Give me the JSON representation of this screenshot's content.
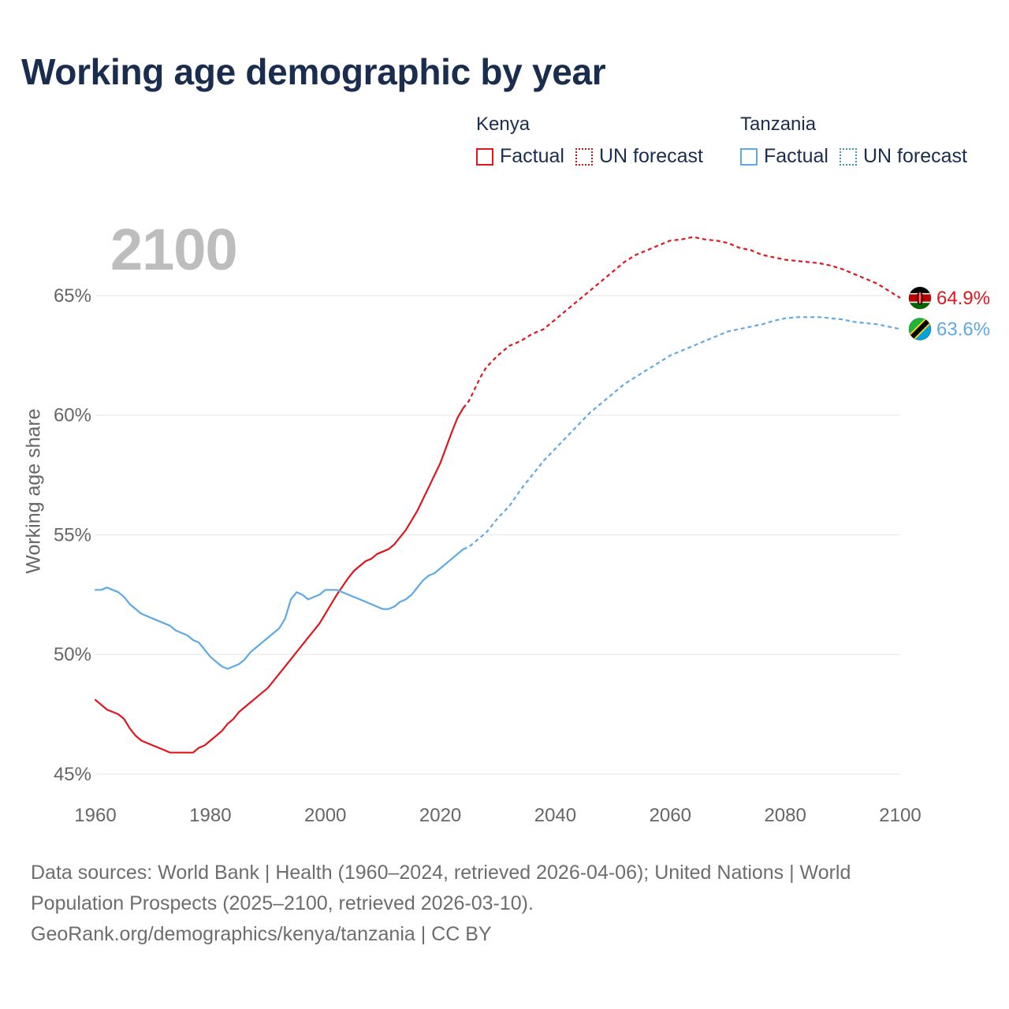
{
  "title": "Working age demographic by year",
  "year_display": "2100",
  "legend": {
    "kenya": {
      "name": "Kenya",
      "factual": "Factual",
      "forecast": "UN forecast"
    },
    "tanzania": {
      "name": "Tanzania",
      "factual": "Factual",
      "forecast": "UN forecast"
    }
  },
  "footer": {
    "line1": "Data sources: World Bank | Health (1960–2024, retrieved 2026-04-06); United Nations | World",
    "line2": "Population Prospects (2025–2100, retrieved 2026-03-10).",
    "line3": "GeoRank.org/demographics/kenya/tanzania | CC BY"
  },
  "colors": {
    "kenya": "#e0161e",
    "tanzania": "#5ea9e6",
    "grid": "#e6e6e6",
    "axis_text": "#666666",
    "title": "#1b2d4f"
  },
  "chart_data": {
    "type": "line",
    "title": "Working age demographic by year",
    "xlabel": "",
    "ylabel": "Working age share",
    "xlim": [
      1960,
      2100
    ],
    "ylim": [
      45,
      67.8
    ],
    "x_ticks": [
      1960,
      1980,
      2000,
      2020,
      2040,
      2060,
      2080,
      2100
    ],
    "y_ticks": [
      45,
      50,
      55,
      60,
      65
    ],
    "y_tick_labels": [
      "45%",
      "50%",
      "55%",
      "60%",
      "65%"
    ],
    "forecast_start": 2024,
    "grid": true,
    "series": [
      {
        "name": "Kenya",
        "color": "#e0161e",
        "end_label": "64.9%",
        "flag": "kenya-flag",
        "points": [
          [
            1960,
            48.1
          ],
          [
            1962,
            47.7
          ],
          [
            1964,
            47.5
          ],
          [
            1965,
            47.3
          ],
          [
            1966,
            46.9
          ],
          [
            1967,
            46.6
          ],
          [
            1968,
            46.4
          ],
          [
            1970,
            46.2
          ],
          [
            1972,
            46.0
          ],
          [
            1973,
            45.9
          ],
          [
            1977,
            45.9
          ],
          [
            1978,
            46.1
          ],
          [
            1979,
            46.2
          ],
          [
            1980,
            46.4
          ],
          [
            1982,
            46.8
          ],
          [
            1983,
            47.1
          ],
          [
            1984,
            47.3
          ],
          [
            1985,
            47.6
          ],
          [
            1987,
            48.0
          ],
          [
            1990,
            48.6
          ],
          [
            1993,
            49.5
          ],
          [
            1996,
            50.4
          ],
          [
            1999,
            51.3
          ],
          [
            2002,
            52.5
          ],
          [
            2004,
            53.2
          ],
          [
            2005,
            53.5
          ],
          [
            2006,
            53.7
          ],
          [
            2007,
            53.9
          ],
          [
            2008,
            54.0
          ],
          [
            2009,
            54.2
          ],
          [
            2011,
            54.4
          ],
          [
            2012,
            54.6
          ],
          [
            2014,
            55.2
          ],
          [
            2016,
            56.0
          ],
          [
            2018,
            57.0
          ],
          [
            2020,
            58.0
          ],
          [
            2022,
            59.3
          ],
          [
            2023,
            59.9
          ],
          [
            2024,
            60.3
          ],
          [
            2025,
            60.6
          ],
          [
            2026,
            61.1
          ],
          [
            2027,
            61.6
          ],
          [
            2028,
            62.0
          ],
          [
            2030,
            62.5
          ],
          [
            2032,
            62.9
          ],
          [
            2034,
            63.1
          ],
          [
            2036,
            63.4
          ],
          [
            2038,
            63.6
          ],
          [
            2040,
            64.0
          ],
          [
            2042,
            64.4
          ],
          [
            2044,
            64.8
          ],
          [
            2046,
            65.2
          ],
          [
            2048,
            65.6
          ],
          [
            2050,
            66.0
          ],
          [
            2052,
            66.4
          ],
          [
            2054,
            66.7
          ],
          [
            2056,
            66.9
          ],
          [
            2058,
            67.1
          ],
          [
            2060,
            67.3
          ],
          [
            2062,
            67.35
          ],
          [
            2064,
            67.45
          ],
          [
            2066,
            67.35
          ],
          [
            2068,
            67.3
          ],
          [
            2070,
            67.2
          ],
          [
            2072,
            67.0
          ],
          [
            2074,
            66.9
          ],
          [
            2076,
            66.7
          ],
          [
            2078,
            66.6
          ],
          [
            2080,
            66.5
          ],
          [
            2082,
            66.45
          ],
          [
            2084,
            66.4
          ],
          [
            2086,
            66.35
          ],
          [
            2088,
            66.25
          ],
          [
            2090,
            66.1
          ],
          [
            2092,
            65.9
          ],
          [
            2094,
            65.7
          ],
          [
            2096,
            65.5
          ],
          [
            2098,
            65.2
          ],
          [
            2100,
            64.9
          ]
        ]
      },
      {
        "name": "Tanzania",
        "color": "#5ea9e6",
        "end_label": "63.6%",
        "flag": "tanzania-flag",
        "points": [
          [
            1960,
            52.7
          ],
          [
            1961,
            52.7
          ],
          [
            1962,
            52.8
          ],
          [
            1964,
            52.6
          ],
          [
            1965,
            52.4
          ],
          [
            1966,
            52.1
          ],
          [
            1967,
            51.9
          ],
          [
            1968,
            51.7
          ],
          [
            1970,
            51.5
          ],
          [
            1972,
            51.3
          ],
          [
            1973,
            51.2
          ],
          [
            1974,
            51.0
          ],
          [
            1976,
            50.8
          ],
          [
            1977,
            50.6
          ],
          [
            1978,
            50.5
          ],
          [
            1979,
            50.2
          ],
          [
            1980,
            49.9
          ],
          [
            1981,
            49.7
          ],
          [
            1982,
            49.5
          ],
          [
            1983,
            49.4
          ],
          [
            1985,
            49.6
          ],
          [
            1986,
            49.8
          ],
          [
            1987,
            50.1
          ],
          [
            1988,
            50.3
          ],
          [
            1990,
            50.7
          ],
          [
            1992,
            51.1
          ],
          [
            1993,
            51.5
          ],
          [
            1994,
            52.3
          ],
          [
            1995,
            52.6
          ],
          [
            1996,
            52.5
          ],
          [
            1997,
            52.3
          ],
          [
            1998,
            52.4
          ],
          [
            1999,
            52.5
          ],
          [
            2000,
            52.7
          ],
          [
            2002,
            52.7
          ],
          [
            2004,
            52.5
          ],
          [
            2006,
            52.3
          ],
          [
            2008,
            52.1
          ],
          [
            2010,
            51.9
          ],
          [
            2011,
            51.9
          ],
          [
            2012,
            52.0
          ],
          [
            2013,
            52.2
          ],
          [
            2014,
            52.3
          ],
          [
            2015,
            52.5
          ],
          [
            2016,
            52.8
          ],
          [
            2017,
            53.1
          ],
          [
            2018,
            53.3
          ],
          [
            2019,
            53.4
          ],
          [
            2020,
            53.6
          ],
          [
            2022,
            54.0
          ],
          [
            2024,
            54.4
          ],
          [
            2025,
            54.5
          ],
          [
            2026,
            54.7
          ],
          [
            2028,
            55.1
          ],
          [
            2030,
            55.7
          ],
          [
            2032,
            56.2
          ],
          [
            2034,
            56.9
          ],
          [
            2036,
            57.5
          ],
          [
            2038,
            58.1
          ],
          [
            2040,
            58.6
          ],
          [
            2042,
            59.1
          ],
          [
            2044,
            59.6
          ],
          [
            2046,
            60.1
          ],
          [
            2048,
            60.5
          ],
          [
            2050,
            60.9
          ],
          [
            2052,
            61.3
          ],
          [
            2054,
            61.6
          ],
          [
            2056,
            61.9
          ],
          [
            2058,
            62.2
          ],
          [
            2060,
            62.5
          ],
          [
            2062,
            62.7
          ],
          [
            2064,
            62.9
          ],
          [
            2066,
            63.1
          ],
          [
            2068,
            63.3
          ],
          [
            2070,
            63.5
          ],
          [
            2072,
            63.6
          ],
          [
            2074,
            63.7
          ],
          [
            2076,
            63.8
          ],
          [
            2078,
            63.95
          ],
          [
            2080,
            64.05
          ],
          [
            2082,
            64.1
          ],
          [
            2084,
            64.1
          ],
          [
            2086,
            64.1
          ],
          [
            2088,
            64.05
          ],
          [
            2090,
            64.0
          ],
          [
            2092,
            63.9
          ],
          [
            2094,
            63.85
          ],
          [
            2096,
            63.8
          ],
          [
            2098,
            63.7
          ],
          [
            2100,
            63.6
          ]
        ]
      }
    ]
  }
}
